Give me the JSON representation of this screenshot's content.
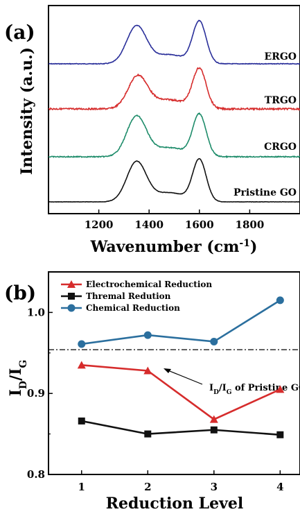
{
  "chart_data": [
    {
      "panel_label": "(a)",
      "type": "line",
      "xlabel": "Wavenumber (cm",
      "xlabel_sup": "-1",
      "xlabel_end": ")",
      "ylabel": "Intensity (a.u.)",
      "xlim": [
        1000,
        2000
      ],
      "xticks": [
        1200,
        1400,
        1600,
        1800
      ],
      "y_ticks_shown": false,
      "series": [
        {
          "name": "ERGO",
          "color": "#2a2f9a",
          "d_peak": 1350,
          "g_peak": 1600,
          "d_int": 0.9,
          "g_int": 1.0
        },
        {
          "name": "TRGO",
          "color": "#d62c2c",
          "d_peak": 1355,
          "g_peak": 1600,
          "d_int": 0.78,
          "g_int": 0.95
        },
        {
          "name": "CRGO",
          "color": "#1e8c6a",
          "d_peak": 1350,
          "g_peak": 1600,
          "d_int": 0.96,
          "g_int": 1.0
        },
        {
          "name": "Pristine GO",
          "color": "#111111",
          "d_peak": 1350,
          "g_peak": 1600,
          "d_int": 0.95,
          "g_int": 1.0
        }
      ]
    },
    {
      "panel_label": "(b)",
      "type": "line",
      "xlabel": "Reduction Level",
      "ylabel_main": "I",
      "ylabel_sub1": "D",
      "ylabel_slash": "/I",
      "ylabel_sub2": "G",
      "xlim": [
        0.5,
        4.3
      ],
      "ylim": [
        0.8,
        1.05
      ],
      "xticks": [
        1,
        2,
        3,
        4
      ],
      "yticks": [
        "0.8",
        "0.9",
        "1.0"
      ],
      "ytick_values": [
        0.8,
        0.9,
        1.0
      ],
      "categories": [
        1,
        2,
        3,
        4
      ],
      "legend_position": "top-left",
      "series": [
        {
          "name": "Electrochemical Reduction",
          "color": "#d62c2c",
          "marker": "triangle",
          "values": [
            0.935,
            0.928,
            0.868,
            0.905
          ]
        },
        {
          "name": "Thremal Redution",
          "color": "#111111",
          "marker": "square",
          "values": [
            0.866,
            0.85,
            0.855,
            0.849
          ]
        },
        {
          "name": "Chemical Reduction",
          "color": "#2b6f9e",
          "marker": "circle",
          "values": [
            0.961,
            0.972,
            0.964,
            1.015
          ]
        }
      ],
      "reference": {
        "value": 0.954,
        "label_main": "I",
        "label_sub1": "D",
        "label_slash": "/I",
        "label_sub2": "G",
        "label_end": " of Pristine GO"
      }
    }
  ]
}
